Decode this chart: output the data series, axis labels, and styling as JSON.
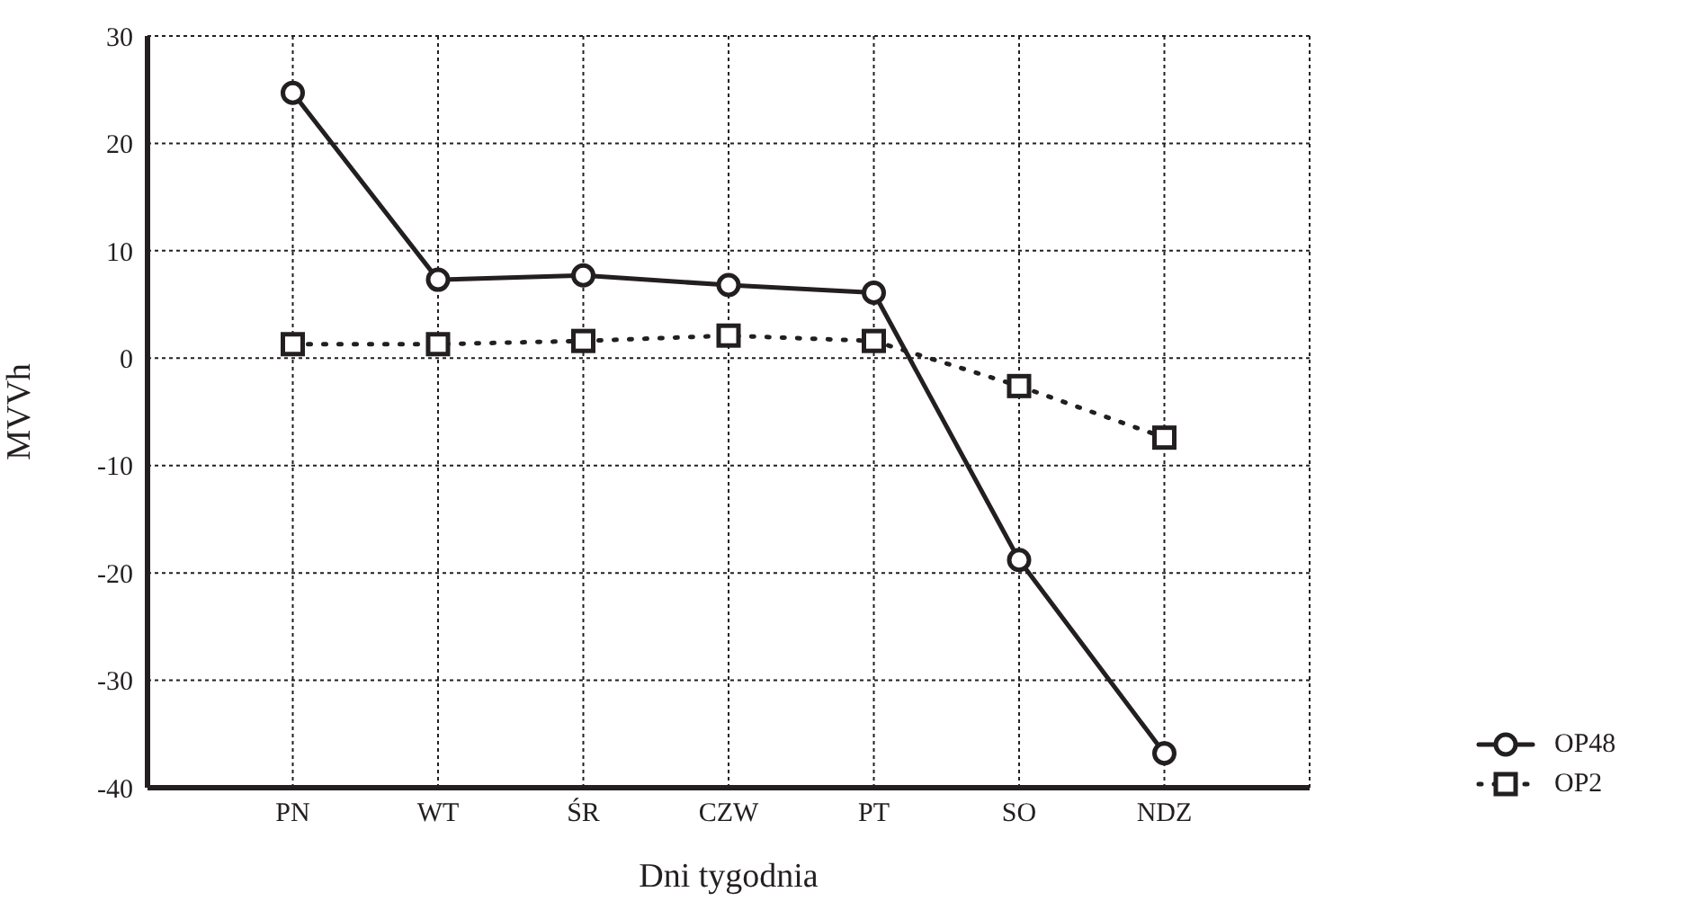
{
  "chart_data": {
    "type": "line",
    "xlabel": "Dni tygodnia",
    "ylabel": "MVVh",
    "categories": [
      "PN",
      "WT",
      "ŚR",
      "CZW",
      "PT",
      "SO",
      "NDZ"
    ],
    "series": [
      {
        "name": "OP48",
        "color": "#231f20",
        "marker": "circle",
        "line_style": "solid",
        "values": [
          24.7,
          7.3,
          7.7,
          6.8,
          6.1,
          -18.8,
          -36.8
        ]
      },
      {
        "name": "OP2",
        "color": "#231f20",
        "marker": "square",
        "line_style": "dotted",
        "values": [
          1.3,
          1.3,
          1.6,
          2.1,
          1.6,
          -2.6,
          -7.4
        ]
      }
    ],
    "ylim": [
      -40,
      30
    ],
    "yticks": [
      -40,
      -30,
      -20,
      -10,
      0,
      10,
      20,
      30
    ],
    "grid": true,
    "legend": "bottom right"
  }
}
